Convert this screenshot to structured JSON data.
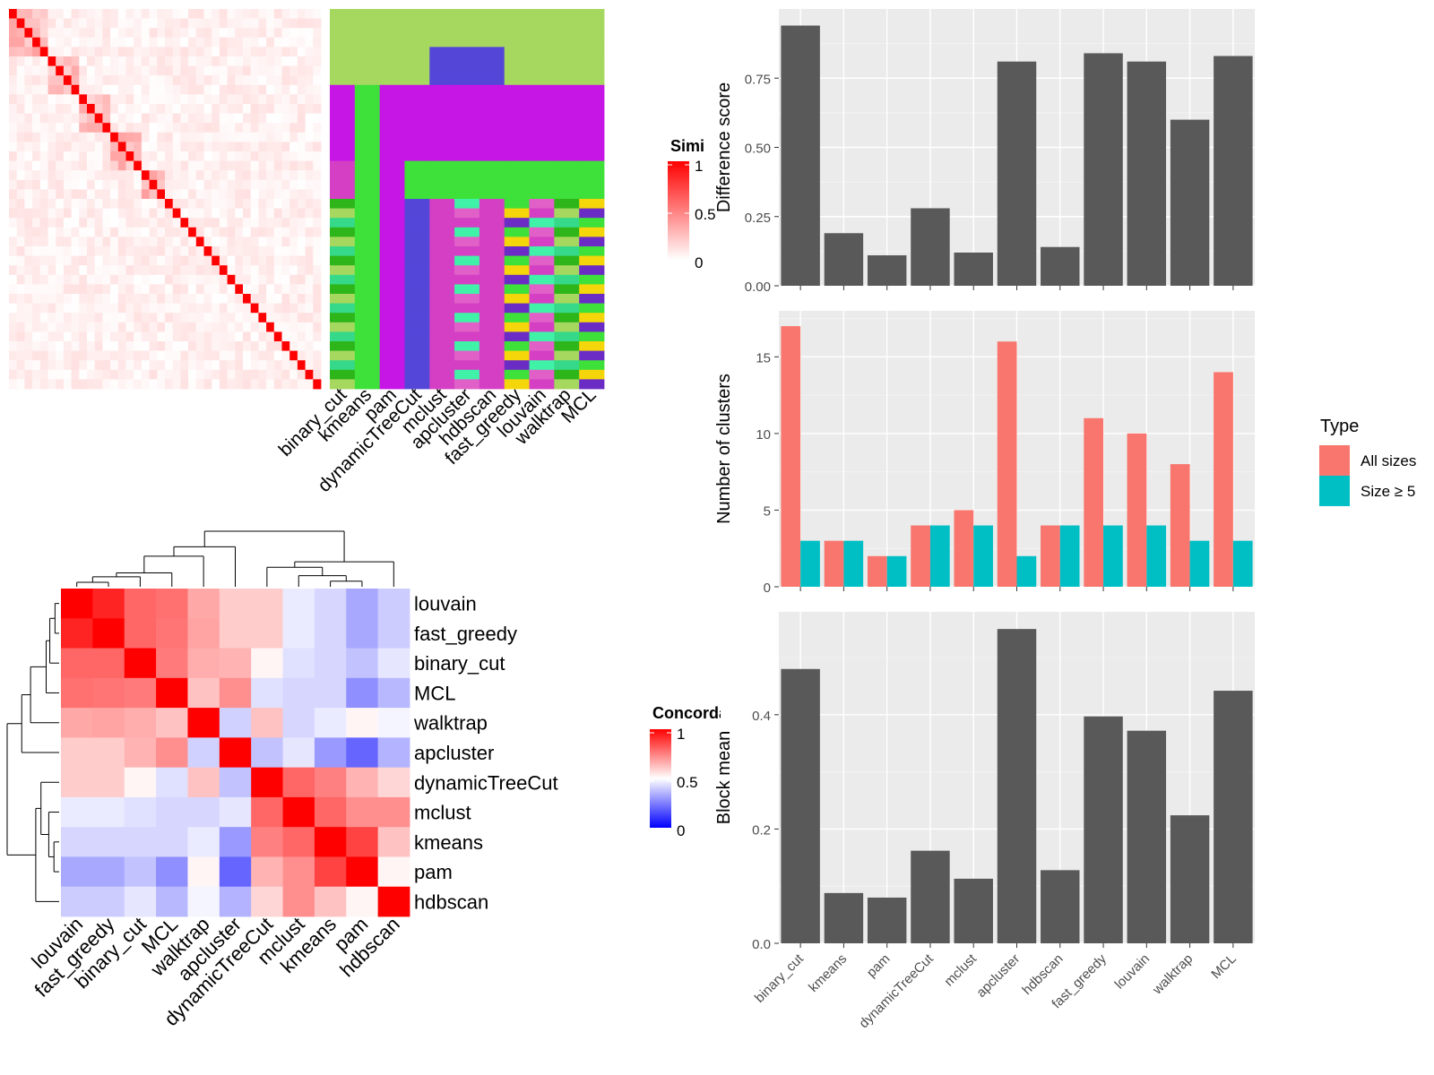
{
  "methods_order": [
    "binary_cut",
    "kmeans",
    "pam",
    "dynamicTreeCut",
    "mclust",
    "apcluster",
    "hdbscan",
    "fast_greedy",
    "louvain",
    "walktrap",
    "MCL"
  ],
  "palette": {
    "panel_bg": "#ebebeb",
    "bar_grey": "#595959",
    "all_sizes": "#f8766d",
    "size_ge5": "#00bfc4",
    "heat_high": "#ff0000",
    "heat_mid": "#ffffff",
    "heat_low": "#0000ff"
  },
  "chart_data": [
    {
      "id": "similarity_heatmap",
      "type": "heatmap",
      "n_terms": 40,
      "diagonal": 1,
      "legend": {
        "title": "Similarity",
        "ticks": [
          "1",
          "0.5",
          "0"
        ]
      },
      "column_labels": [
        "binary_cut",
        "kmeans",
        "pam",
        "dynamicTreeCut",
        "mclust",
        "apcluster",
        "hdbscan",
        "fast_greedy",
        "louvain",
        "walktrap",
        "MCL"
      ],
      "cluster_colors": [
        "#a6d85f",
        "#c516e6",
        "#3ee03a",
        "#5447d8",
        "#d43fc4",
        "#36d989",
        "#f5d60a",
        "#40f2a8",
        "#2db51a",
        "#6a2cc4",
        "#e060c8"
      ]
    },
    {
      "id": "difference_score",
      "type": "bar",
      "ylabel": "Difference score",
      "categories": [
        "binary_cut",
        "kmeans",
        "pam",
        "dynamicTreeCut",
        "mclust",
        "apcluster",
        "hdbscan",
        "fast_greedy",
        "louvain",
        "walktrap",
        "MCL"
      ],
      "values": [
        0.94,
        0.19,
        0.11,
        0.28,
        0.12,
        0.81,
        0.14,
        0.84,
        0.81,
        0.6,
        0.83
      ],
      "ylim": [
        0,
        1.0
      ],
      "yticks": [
        "0.00",
        "0.25",
        "0.50",
        "0.75"
      ]
    },
    {
      "id": "number_of_clusters",
      "type": "bar",
      "ylabel": "Number of clusters",
      "categories": [
        "binary_cut",
        "kmeans",
        "pam",
        "dynamicTreeCut",
        "mclust",
        "apcluster",
        "hdbscan",
        "fast_greedy",
        "louvain",
        "walktrap",
        "MCL"
      ],
      "series": [
        {
          "name": "All sizes",
          "values": [
            17,
            3,
            2,
            4,
            5,
            16,
            4,
            11,
            10,
            8,
            14
          ]
        },
        {
          "name": "Size ≥ 5",
          "values": [
            3,
            3,
            2,
            4,
            4,
            2,
            4,
            4,
            4,
            3,
            3
          ]
        }
      ],
      "ylim": [
        0,
        18
      ],
      "yticks": [
        "0",
        "5",
        "10",
        "15"
      ],
      "legend": {
        "title": "Type",
        "position": "right"
      }
    },
    {
      "id": "block_mean",
      "type": "bar",
      "ylabel": "Block mean",
      "categories": [
        "binary_cut",
        "kmeans",
        "pam",
        "dynamicTreeCut",
        "mclust",
        "apcluster",
        "hdbscan",
        "fast_greedy",
        "louvain",
        "walktrap",
        "MCL"
      ],
      "values": [
        0.48,
        0.088,
        0.08,
        0.162,
        0.113,
        0.55,
        0.128,
        0.397,
        0.372,
        0.224,
        0.442
      ],
      "ylim": [
        0,
        0.58
      ],
      "yticks": [
        "0.0",
        "0.2",
        "0.4"
      ]
    },
    {
      "id": "concordance_heatmap",
      "type": "heatmap",
      "legend": {
        "title": "Concordance",
        "ticks": [
          "1",
          "0.5",
          "0"
        ]
      },
      "labels": [
        "louvain",
        "fast_greedy",
        "binary_cut",
        "MCL",
        "walktrap",
        "apcluster",
        "dynamicTreeCut",
        "mclust",
        "kmeans",
        "pam",
        "hdbscan"
      ],
      "matrix": [
        [
          1.0,
          0.93,
          0.8,
          0.78,
          0.67,
          0.6,
          0.6,
          0.46,
          0.42,
          0.33,
          0.4
        ],
        [
          0.93,
          1.0,
          0.8,
          0.77,
          0.68,
          0.6,
          0.6,
          0.46,
          0.42,
          0.33,
          0.4
        ],
        [
          0.8,
          0.8,
          1.0,
          0.76,
          0.66,
          0.65,
          0.52,
          0.44,
          0.42,
          0.38,
          0.45
        ],
        [
          0.78,
          0.77,
          0.76,
          1.0,
          0.62,
          0.72,
          0.44,
          0.42,
          0.42,
          0.28,
          0.36
        ],
        [
          0.67,
          0.68,
          0.66,
          0.62,
          1.0,
          0.41,
          0.62,
          0.42,
          0.46,
          0.52,
          0.48
        ],
        [
          0.6,
          0.6,
          0.65,
          0.72,
          0.41,
          1.0,
          0.38,
          0.45,
          0.3,
          0.2,
          0.35
        ],
        [
          0.6,
          0.6,
          0.52,
          0.44,
          0.62,
          0.38,
          1.0,
          0.8,
          0.75,
          0.65,
          0.58
        ],
        [
          0.46,
          0.46,
          0.44,
          0.42,
          0.42,
          0.45,
          0.8,
          1.0,
          0.8,
          0.72,
          0.72
        ],
        [
          0.42,
          0.42,
          0.42,
          0.42,
          0.46,
          0.3,
          0.75,
          0.8,
          1.0,
          0.87,
          0.62
        ],
        [
          0.33,
          0.33,
          0.38,
          0.28,
          0.52,
          0.2,
          0.65,
          0.72,
          0.87,
          1.0,
          0.52
        ],
        [
          0.4,
          0.4,
          0.45,
          0.36,
          0.48,
          0.35,
          0.58,
          0.72,
          0.62,
          0.52,
          1.0
        ]
      ]
    }
  ]
}
